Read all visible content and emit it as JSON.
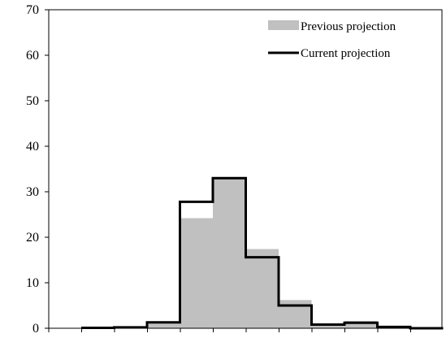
{
  "chart_data": {
    "type": "bar",
    "bins": 11,
    "ylim": [
      0,
      70
    ],
    "yticks": [
      "0",
      "10",
      "20",
      "30",
      "40",
      "50",
      "60",
      "70"
    ],
    "grid": false,
    "legend_position": "top-right",
    "series": [
      {
        "name": "Previous projection",
        "style": "filled-bars",
        "color": "#c0c0c0",
        "values": [
          0.1,
          0.2,
          1.2,
          24.2,
          33.0,
          17.4,
          6.2,
          0.9,
          1.6,
          0.3,
          0
        ]
      },
      {
        "name": "Current projection",
        "style": "step-outline",
        "color": "#000000",
        "values": [
          0.1,
          0.2,
          1.3,
          27.8,
          33.0,
          15.6,
          5.0,
          0.8,
          1.2,
          0.3,
          0
        ]
      }
    ]
  }
}
